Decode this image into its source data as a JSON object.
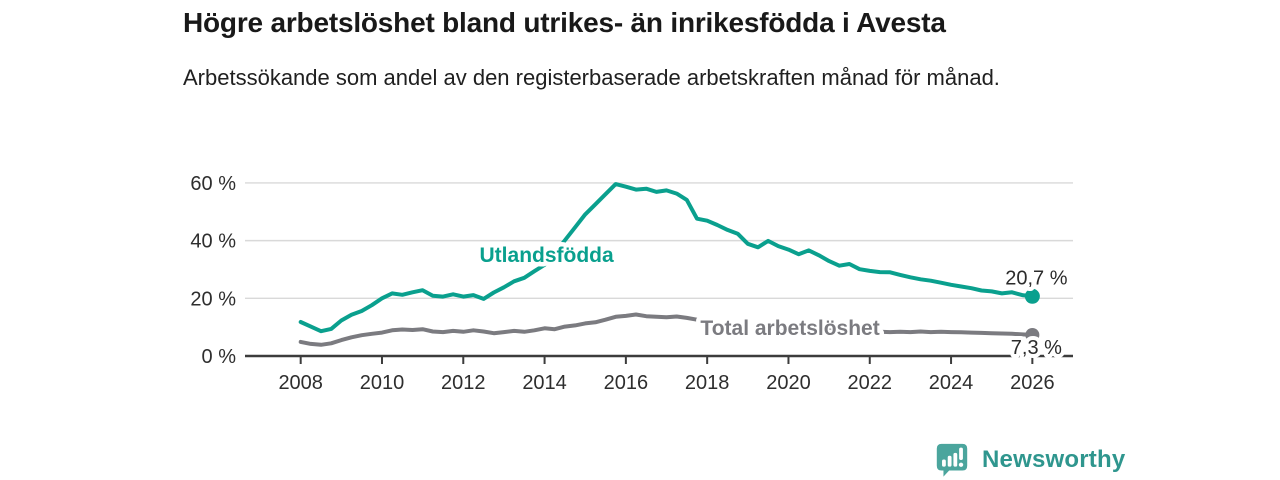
{
  "header": {
    "title": "Högre arbetslöshet bland utrikes- än inrikesfödda i Avesta",
    "subtitle": "Arbetssökande som andel av den registerbaserade arbetskraften månad för månad."
  },
  "branding": {
    "logo_text": "Newsworthy",
    "logo_icon": "bar-chart-speech-bubble",
    "logo_icon_color": "#4BA59D",
    "logo_text_color": "#2F968E"
  },
  "colors": {
    "background": "#ffffff",
    "title_text": "#191919",
    "axis_text": "#2e2e2e",
    "axis_line": "#3c3c3c",
    "gridline": "#d9d9d9",
    "series_foreign": "#0AA08E",
    "series_total": "#7B7B80",
    "value_label_text": "#2b2b2b"
  },
  "chart_data": {
    "type": "line",
    "title": "Högre arbetslöshet bland utrikes- än inrikesfödda i Avesta",
    "xlabel": "",
    "ylabel": "Arbetssökande som andel av den registerbaserade arbetskraften",
    "grid": "horizontal",
    "legend_position": "inline-labels",
    "xlim": [
      2006.63,
      2027.0
    ],
    "ylim": [
      0,
      62.4
    ],
    "x_ticks": [
      2008,
      2010,
      2012,
      2014,
      2016,
      2018,
      2020,
      2022,
      2024,
      2026
    ],
    "x_tick_labels": [
      "2008",
      "2010",
      "2012",
      "2014",
      "2016",
      "2018",
      "2020",
      "2022",
      "2024",
      "2026"
    ],
    "y_ticks": [
      0,
      20,
      40,
      60
    ],
    "y_tick_labels": [
      "0 %",
      "20 %",
      "40 %",
      "60 %"
    ],
    "y_gridlines": [
      20,
      40,
      60
    ],
    "series": [
      {
        "name": "Utlandsfödda",
        "color": "#0AA08E",
        "end_label": "20,7 %",
        "end_dot": true,
        "label_anchor": {
          "x": 2014.05,
          "y": 35.4
        },
        "points": [
          [
            2008.0,
            11.8
          ],
          [
            2008.25,
            10.2
          ],
          [
            2008.5,
            8.6
          ],
          [
            2008.75,
            9.4
          ],
          [
            2009.0,
            12.3
          ],
          [
            2009.25,
            14.3
          ],
          [
            2009.5,
            15.6
          ],
          [
            2009.75,
            17.6
          ],
          [
            2010.0,
            20.0
          ],
          [
            2010.25,
            21.7
          ],
          [
            2010.5,
            21.2
          ],
          [
            2010.75,
            22.1
          ],
          [
            2011.0,
            22.8
          ],
          [
            2011.25,
            20.9
          ],
          [
            2011.5,
            20.6
          ],
          [
            2011.75,
            21.4
          ],
          [
            2012.0,
            20.6
          ],
          [
            2012.25,
            21.1
          ],
          [
            2012.5,
            19.8
          ],
          [
            2012.75,
            22.0
          ],
          [
            2013.0,
            23.8
          ],
          [
            2013.25,
            25.9
          ],
          [
            2013.5,
            27.1
          ],
          [
            2013.75,
            29.4
          ],
          [
            2014.0,
            31.6
          ],
          [
            2014.25,
            35.6
          ],
          [
            2014.5,
            40.1
          ],
          [
            2014.75,
            44.6
          ],
          [
            2015.0,
            49.1
          ],
          [
            2015.25,
            52.6
          ],
          [
            2015.5,
            56.1
          ],
          [
            2015.75,
            59.6
          ],
          [
            2016.0,
            58.7
          ],
          [
            2016.25,
            57.7
          ],
          [
            2016.5,
            58.0
          ],
          [
            2016.75,
            56.9
          ],
          [
            2017.0,
            57.4
          ],
          [
            2017.25,
            56.3
          ],
          [
            2017.5,
            54.1
          ],
          [
            2017.75,
            47.6
          ],
          [
            2018.0,
            46.9
          ],
          [
            2018.25,
            45.4
          ],
          [
            2018.5,
            43.7
          ],
          [
            2018.75,
            42.4
          ],
          [
            2019.0,
            38.9
          ],
          [
            2019.25,
            37.7
          ],
          [
            2019.5,
            39.9
          ],
          [
            2019.75,
            38.1
          ],
          [
            2020.0,
            36.9
          ],
          [
            2020.25,
            35.3
          ],
          [
            2020.5,
            36.6
          ],
          [
            2020.75,
            34.9
          ],
          [
            2021.0,
            32.9
          ],
          [
            2021.25,
            31.3
          ],
          [
            2021.5,
            31.9
          ],
          [
            2021.75,
            30.1
          ],
          [
            2022.0,
            29.5
          ],
          [
            2022.25,
            29.1
          ],
          [
            2022.5,
            29.0
          ],
          [
            2022.75,
            28.1
          ],
          [
            2023.0,
            27.3
          ],
          [
            2023.25,
            26.6
          ],
          [
            2023.5,
            26.1
          ],
          [
            2023.75,
            25.4
          ],
          [
            2024.0,
            24.7
          ],
          [
            2024.25,
            24.1
          ],
          [
            2024.5,
            23.5
          ],
          [
            2024.75,
            22.7
          ],
          [
            2025.0,
            22.4
          ],
          [
            2025.25,
            21.7
          ],
          [
            2025.5,
            22.1
          ],
          [
            2025.75,
            21.1
          ],
          [
            2026.0,
            20.7
          ]
        ]
      },
      {
        "name": "Total arbetslöshet",
        "color": "#7B7B80",
        "end_label": "7,3 %",
        "end_dot": true,
        "label_anchor": {
          "x": 2020.04,
          "y": 10.05
        },
        "points": [
          [
            2008.0,
            4.9
          ],
          [
            2008.25,
            4.2
          ],
          [
            2008.5,
            3.9
          ],
          [
            2008.75,
            4.4
          ],
          [
            2009.0,
            5.5
          ],
          [
            2009.25,
            6.5
          ],
          [
            2009.5,
            7.2
          ],
          [
            2009.75,
            7.7
          ],
          [
            2010.0,
            8.1
          ],
          [
            2010.25,
            8.9
          ],
          [
            2010.5,
            9.2
          ],
          [
            2010.75,
            9.0
          ],
          [
            2011.0,
            9.3
          ],
          [
            2011.25,
            8.5
          ],
          [
            2011.5,
            8.3
          ],
          [
            2011.75,
            8.7
          ],
          [
            2012.0,
            8.4
          ],
          [
            2012.25,
            8.9
          ],
          [
            2012.5,
            8.5
          ],
          [
            2012.75,
            7.9
          ],
          [
            2013.0,
            8.3
          ],
          [
            2013.25,
            8.7
          ],
          [
            2013.5,
            8.4
          ],
          [
            2013.75,
            8.9
          ],
          [
            2014.0,
            9.6
          ],
          [
            2014.25,
            9.3
          ],
          [
            2014.5,
            10.2
          ],
          [
            2014.75,
            10.6
          ],
          [
            2015.0,
            11.3
          ],
          [
            2015.25,
            11.7
          ],
          [
            2015.5,
            12.6
          ],
          [
            2015.75,
            13.6
          ],
          [
            2016.0,
            13.9
          ],
          [
            2016.25,
            14.4
          ],
          [
            2016.5,
            13.8
          ],
          [
            2016.75,
            13.6
          ],
          [
            2017.0,
            13.4
          ],
          [
            2017.25,
            13.7
          ],
          [
            2017.5,
            13.2
          ],
          [
            2017.75,
            12.6
          ],
          [
            2018.0,
            12.0
          ],
          [
            2018.25,
            11.5
          ],
          [
            2018.5,
            11.0
          ],
          [
            2018.75,
            10.6
          ],
          [
            2019.0,
            10.2
          ],
          [
            2019.25,
            9.9
          ],
          [
            2019.5,
            10.0
          ],
          [
            2019.75,
            9.7
          ],
          [
            2020.0,
            9.8
          ],
          [
            2020.25,
            10.6
          ],
          [
            2020.5,
            10.9
          ],
          [
            2020.75,
            10.4
          ],
          [
            2021.0,
            9.9
          ],
          [
            2021.25,
            9.4
          ],
          [
            2021.5,
            9.0
          ],
          [
            2021.75,
            8.7
          ],
          [
            2022.0,
            8.5
          ],
          [
            2022.25,
            8.4
          ],
          [
            2022.5,
            8.3
          ],
          [
            2022.75,
            8.4
          ],
          [
            2023.0,
            8.3
          ],
          [
            2023.25,
            8.5
          ],
          [
            2023.5,
            8.3
          ],
          [
            2023.75,
            8.4
          ],
          [
            2024.0,
            8.3
          ],
          [
            2024.25,
            8.2
          ],
          [
            2024.5,
            8.1
          ],
          [
            2024.75,
            8.0
          ],
          [
            2025.0,
            7.9
          ],
          [
            2025.25,
            7.8
          ],
          [
            2025.5,
            7.7
          ],
          [
            2025.75,
            7.5
          ],
          [
            2026.0,
            7.3
          ]
        ]
      }
    ]
  }
}
